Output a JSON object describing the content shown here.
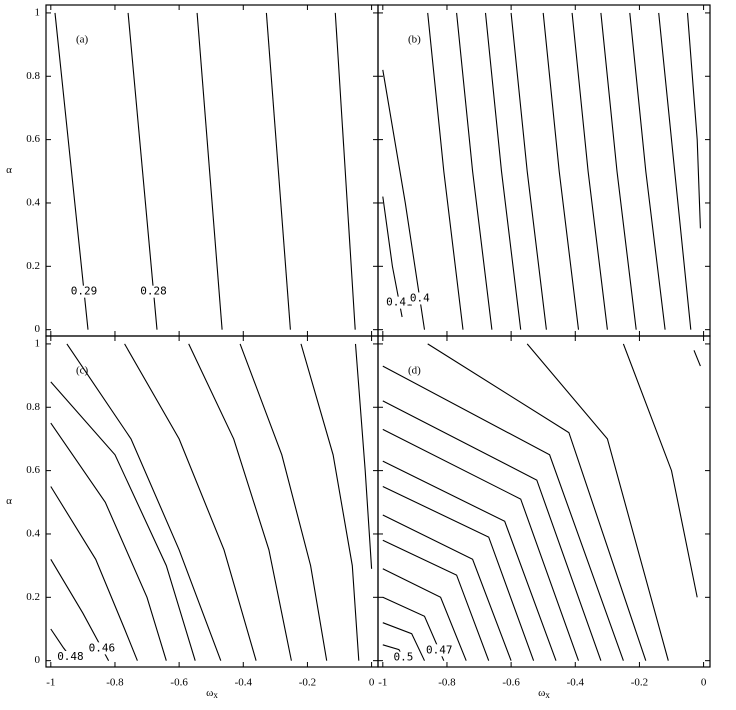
{
  "chart_data": [
    {
      "type": "contour",
      "panel_label": "(a)",
      "y_label": "α",
      "color": "#000000",
      "xlim": [
        -1.015,
        0.02
      ],
      "ylim": [
        -0.02,
        1.025
      ],
      "xticks": [
        -1,
        -0.8,
        -0.6,
        -0.4,
        -0.2,
        0
      ],
      "yticks": [
        0,
        0.2,
        0.4,
        0.6,
        0.8,
        1
      ],
      "series": [
        {
          "x": [
            -0.987,
            -0.884
          ],
          "y": [
            1,
            0
          ],
          "label": "0.29"
        },
        {
          "x": [
            -0.759,
            -0.669
          ],
          "y": [
            1,
            0
          ],
          "label": "0.28"
        },
        {
          "x": [
            -0.544,
            -0.466
          ],
          "y": [
            1,
            0
          ]
        },
        {
          "x": [
            -0.328,
            -0.253
          ],
          "y": [
            1,
            0
          ]
        },
        {
          "x": [
            -0.113,
            -0.051
          ],
          "y": [
            1,
            0
          ]
        }
      ]
    },
    {
      "type": "contour",
      "panel_label": "(b)",
      "color": "#000000",
      "xlim": [
        -1.015,
        0.02
      ],
      "ylim": [
        -0.02,
        1.025
      ],
      "xticks": [
        -1,
        -0.8,
        -0.6,
        -0.4,
        -0.2,
        0
      ],
      "yticks": [
        0,
        0.2,
        0.4,
        0.6,
        0.8,
        1
      ],
      "series": [
        {
          "x": [
            -1,
            -0.97,
            -0.94
          ],
          "y": [
            0.42,
            0.2,
            0.04
          ],
          "label": "0.41"
        },
        {
          "x": [
            -1,
            -0.93,
            -0.87
          ],
          "y": [
            0.82,
            0.4,
            0
          ],
          "label": "0.4"
        },
        {
          "x": [
            -0.86,
            -0.81,
            -0.75
          ],
          "y": [
            1,
            0.5,
            0
          ]
        },
        {
          "x": [
            -0.77,
            -0.72,
            -0.66
          ],
          "y": [
            1,
            0.5,
            0
          ]
        },
        {
          "x": [
            -0.68,
            -0.63,
            -0.57
          ],
          "y": [
            1,
            0.5,
            0
          ]
        },
        {
          "x": [
            -0.6,
            -0.55,
            -0.49
          ],
          "y": [
            1,
            0.5,
            0
          ]
        },
        {
          "x": [
            -0.5,
            -0.45,
            -0.39
          ],
          "y": [
            1,
            0.5,
            0
          ]
        },
        {
          "x": [
            -0.41,
            -0.36,
            -0.3
          ],
          "y": [
            1,
            0.5,
            0
          ]
        },
        {
          "x": [
            -0.32,
            -0.27,
            -0.21
          ],
          "y": [
            1,
            0.5,
            0
          ]
        },
        {
          "x": [
            -0.23,
            -0.18,
            -0.12
          ],
          "y": [
            1,
            0.5,
            0
          ]
        },
        {
          "x": [
            -0.14,
            -0.09,
            -0.04
          ],
          "y": [
            1,
            0.5,
            0
          ]
        },
        {
          "x": [
            -0.05,
            -0.02,
            -0.01
          ],
          "y": [
            1,
            0.6,
            0.32
          ]
        }
      ]
    },
    {
      "type": "contour",
      "panel_label": "(c)",
      "y_label": "α",
      "x_label": {
        "symbol": "ω",
        "subscript": "x"
      },
      "color": "#000000",
      "xlim": [
        -1.015,
        0.02
      ],
      "ylim": [
        -0.02,
        1.025
      ],
      "xticks": [
        -1,
        -0.8,
        -0.6,
        -0.4,
        -0.2,
        0
      ],
      "yticks": [
        0,
        0.2,
        0.4,
        0.6,
        0.8,
        1
      ],
      "series": [
        {
          "x": [
            -1,
            -0.96,
            -0.93
          ],
          "y": [
            0.1,
            0.04,
            0
          ],
          "label": "0.48"
        },
        {
          "x": [
            -1,
            -0.9,
            -0.82
          ],
          "y": [
            0.32,
            0.15,
            0
          ],
          "label": "0.46"
        },
        {
          "x": [
            -1,
            -0.86,
            -0.77,
            -0.73
          ],
          "y": [
            0.55,
            0.32,
            0.1,
            0
          ]
        },
        {
          "x": [
            -1,
            -0.83,
            -0.7,
            -0.64
          ],
          "y": [
            0.75,
            0.5,
            0.2,
            0
          ]
        },
        {
          "x": [
            -1,
            -0.8,
            -0.64,
            -0.55
          ],
          "y": [
            0.88,
            0.65,
            0.3,
            0
          ]
        },
        {
          "x": [
            -0.95,
            -0.75,
            -0.6,
            -0.47
          ],
          "y": [
            1,
            0.7,
            0.35,
            0
          ]
        },
        {
          "x": [
            -0.77,
            -0.6,
            -0.46,
            -0.36
          ],
          "y": [
            1,
            0.7,
            0.35,
            0
          ]
        },
        {
          "x": [
            -0.57,
            -0.43,
            -0.32,
            -0.25
          ],
          "y": [
            1,
            0.7,
            0.35,
            0
          ]
        },
        {
          "x": [
            -0.41,
            -0.28,
            -0.19,
            -0.14
          ],
          "y": [
            1,
            0.65,
            0.3,
            0
          ]
        },
        {
          "x": [
            -0.22,
            -0.12,
            -0.06,
            -0.04
          ],
          "y": [
            1,
            0.65,
            0.3,
            0
          ]
        },
        {
          "x": [
            -0.05,
            -0.02,
            0
          ],
          "y": [
            1,
            0.6,
            0.29
          ]
        }
      ]
    },
    {
      "type": "contour",
      "panel_label": "(d)",
      "x_label": {
        "symbol": "ω",
        "subscript": "x"
      },
      "color": "#000000",
      "xlim": [
        -1.015,
        0.02
      ],
      "ylim": [
        -0.02,
        1.025
      ],
      "xticks": [
        -1,
        -0.8,
        -0.6,
        -0.4,
        -0.2,
        0
      ],
      "yticks": [
        0,
        0.2,
        0.4,
        0.6,
        0.8,
        1
      ],
      "series": [
        {
          "x": [
            -1,
            -0.95,
            -0.93
          ],
          "y": [
            0.05,
            0.035,
            0
          ],
          "label": "0.5"
        },
        {
          "x": [
            -1,
            -0.91,
            -0.87
          ],
          "y": [
            0.12,
            0.085,
            0
          ]
        },
        {
          "x": [
            -1,
            -0.87,
            -0.81
          ],
          "y": [
            0.2,
            0.14,
            0
          ],
          "label": "0.47"
        },
        {
          "x": [
            -1,
            -0.82,
            -0.74
          ],
          "y": [
            0.29,
            0.2,
            0
          ]
        },
        {
          "x": [
            -1,
            -0.77,
            -0.67
          ],
          "y": [
            0.38,
            0.27,
            0
          ]
        },
        {
          "x": [
            -1,
            -0.72,
            -0.6
          ],
          "y": [
            0.46,
            0.32,
            0
          ]
        },
        {
          "x": [
            -1,
            -0.67,
            -0.53
          ],
          "y": [
            0.55,
            0.39,
            0
          ]
        },
        {
          "x": [
            -1,
            -0.62,
            -0.46
          ],
          "y": [
            0.63,
            0.44,
            0
          ]
        },
        {
          "x": [
            -1,
            -0.57,
            -0.39
          ],
          "y": [
            0.73,
            0.51,
            0
          ]
        },
        {
          "x": [
            -1,
            -0.52,
            -0.32
          ],
          "y": [
            0.82,
            0.57,
            0
          ]
        },
        {
          "x": [
            -1,
            -0.48,
            -0.25
          ],
          "y": [
            0.93,
            0.65,
            0
          ]
        },
        {
          "x": [
            -0.86,
            -0.42,
            -0.18
          ],
          "y": [
            1,
            0.72,
            0
          ]
        },
        {
          "x": [
            -0.55,
            -0.3,
            -0.11
          ],
          "y": [
            1,
            0.7,
            0
          ]
        },
        {
          "x": [
            -0.25,
            -0.1,
            -0.02
          ],
          "y": [
            1,
            0.6,
            0.2
          ]
        },
        {
          "x": [
            -0.03,
            -0.01
          ],
          "y": [
            0.98,
            0.93
          ]
        }
      ]
    }
  ]
}
